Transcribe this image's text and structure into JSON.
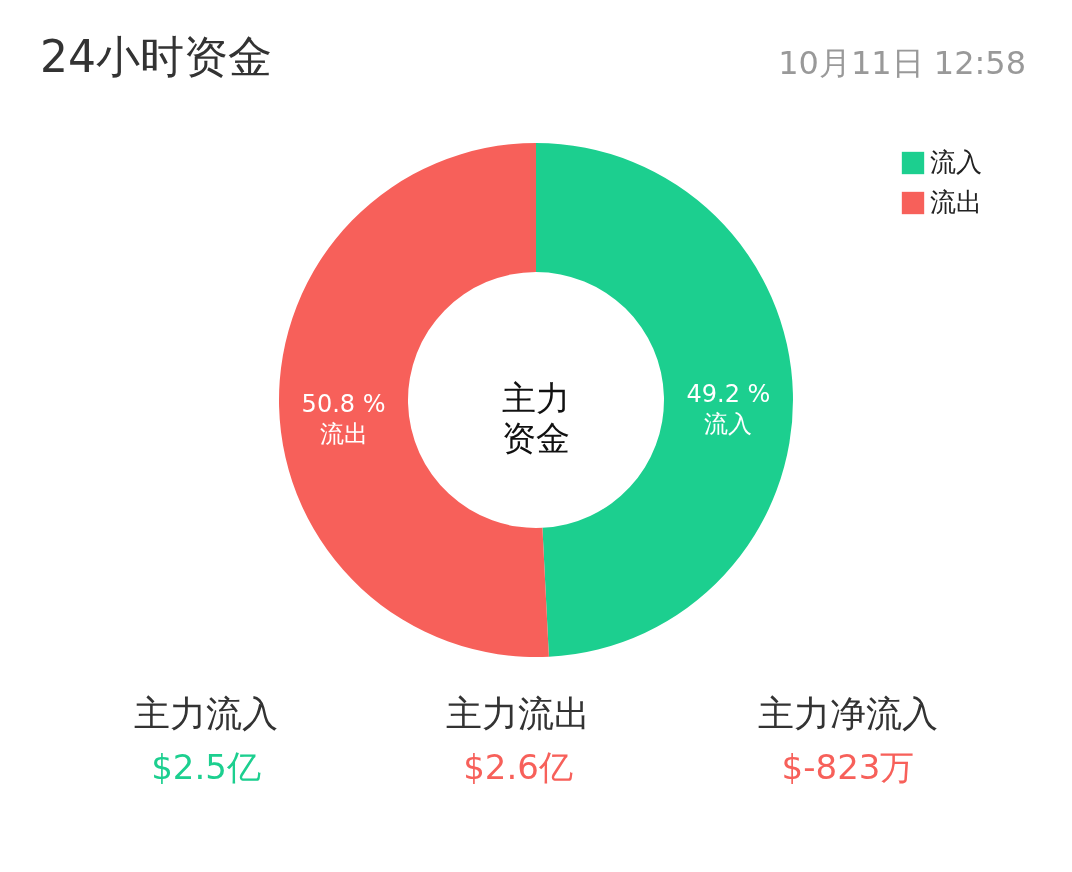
{
  "chart_data": {
    "type": "donut",
    "title": "24小时资金",
    "subtitle": "10月11日 12:58",
    "categories": [
      "流入",
      "流出"
    ],
    "values": [
      49.2,
      50.8
    ],
    "colors": [
      "#1ccf8f",
      "#f7605a"
    ],
    "value_labels": [
      "49.2 %",
      "50.8 %"
    ],
    "legend": "top right",
    "annotations": [
      "主力资金",
      "主力流入",
      "$2.5亿",
      "主力流出",
      "$2.6亿",
      "主力净流入",
      "$-823万"
    ]
  }
}
